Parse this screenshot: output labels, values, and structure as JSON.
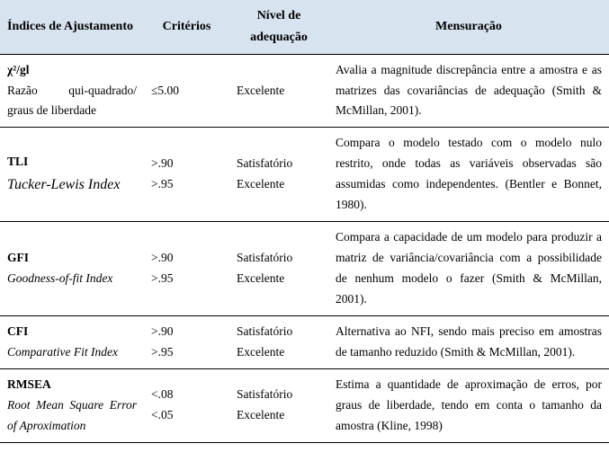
{
  "header": {
    "col1": "Índices de Ajustamento",
    "col2": "Critérios",
    "col3": "Nível de adequação",
    "col4": "Mensuração"
  },
  "rows": [
    {
      "idx_bold": "χ²/gl",
      "idx_sub": "Razão qui-quadrado/ graus de liberdade",
      "crit": "≤5.00",
      "level": "Excelente",
      "meas": "Avalia a magnitude discrepância entre a amostra e as matrizes das covariâncias de adequação (Smith & McMillan, 2001)."
    },
    {
      "idx_bold": "TLI",
      "idx_sub_large": "Tucker-Lewis Index",
      "crit_a": ">.90",
      "crit_b": ">.95",
      "level_a": "Satisfatório",
      "level_b": "Excelente",
      "meas": "Compara o modelo testado com o modelo nulo restrito, onde todas as variáveis observadas são assumidas como independentes. (Bentler e Bonnet, 1980)."
    },
    {
      "idx_bold": "GFI",
      "idx_sub_ital": "Goodness-of-fit Index",
      "crit_a": ">.90",
      "crit_b": ">.95",
      "level_a": "Satisfatório",
      "level_b": "Excelente",
      "meas": "Compara a capacidade de um modelo para produzir a matriz de variância/covariância com a possibilidade de nenhum modelo o fazer (Smith & McMillan, 2001)."
    },
    {
      "idx_bold": "CFI",
      "idx_sub_ital": "Comparative Fit Index",
      "crit_a": ">.90",
      "crit_b": ">.95",
      "level_a": "Satisfatório",
      "level_b": "Excelente",
      "meas": "Alternativa ao NFI, sendo mais preciso em amostras de tamanho reduzido (Smith & McMillan, 2001)."
    },
    {
      "idx_bold": "RMSEA",
      "idx_sub_ital": "Root Mean Square Error of Aproximation",
      "crit_a": "<.08",
      "crit_b": "<.05",
      "level_a": "Satisfatório",
      "level_b": "Excelente",
      "meas": "Estima a quantidade de aproximação de erros, por graus de liberdade, tendo em conta o tamanho da amostra (Kline, 1998)"
    }
  ]
}
